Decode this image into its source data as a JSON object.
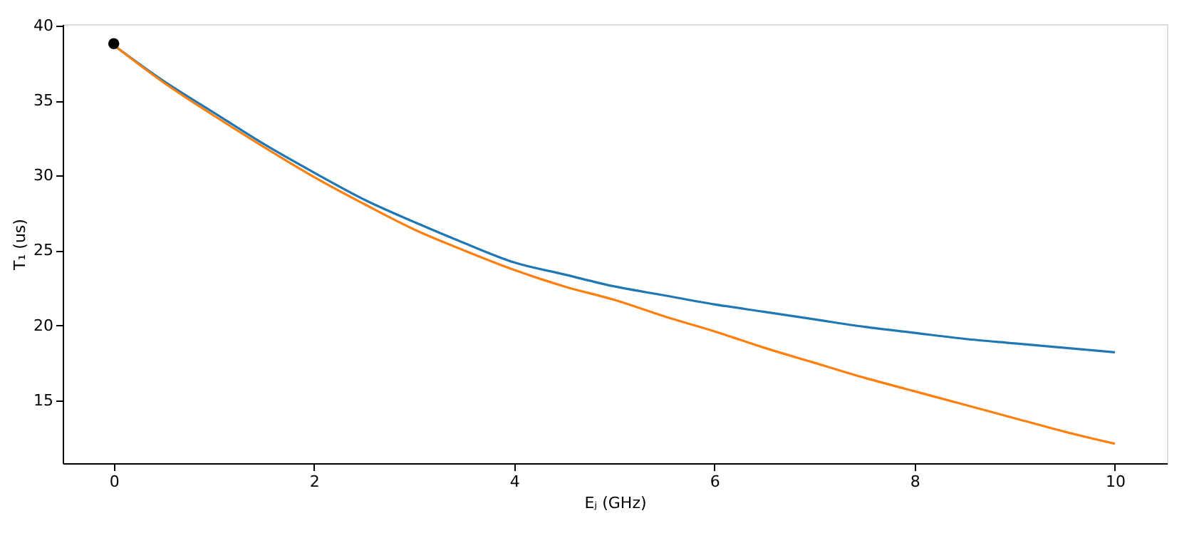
{
  "chart_data": {
    "type": "line",
    "xlabel": "Eⱼ (GHz)",
    "ylabel": "T₁ (us)",
    "xlim": [
      -0.51,
      10.52
    ],
    "ylim": [
      10.8,
      40.1
    ],
    "xticks": [
      0,
      2,
      4,
      6,
      8,
      10
    ],
    "yticks": [
      15,
      20,
      25,
      30,
      35,
      40
    ],
    "grid": false,
    "series": [
      {
        "color": "#1f77b4",
        "x": [
          0,
          0.5,
          1,
          1.5,
          2,
          2.5,
          3,
          3.5,
          4,
          4.5,
          5,
          5.5,
          6,
          6.5,
          7,
          7.5,
          8,
          8.5,
          9,
          9.5,
          10
        ],
        "values": [
          38.7,
          36.3,
          34.2,
          32.1,
          30.2,
          28.4,
          26.9,
          25.5,
          24.2,
          23.4,
          22.6,
          22.0,
          21.4,
          20.9,
          20.4,
          19.9,
          19.5,
          19.1,
          18.8,
          18.5,
          18.2
        ]
      },
      {
        "color": "#ff7f0e",
        "x": [
          0,
          0.5,
          1,
          1.5,
          2,
          2.5,
          3,
          3.5,
          4,
          4.5,
          5,
          5.5,
          6,
          6.5,
          7,
          7.5,
          8,
          8.5,
          9,
          9.5,
          10
        ],
        "values": [
          38.7,
          36.2,
          34.0,
          31.9,
          29.9,
          28.1,
          26.4,
          25.0,
          23.7,
          22.6,
          21.7,
          20.6,
          19.6,
          18.5,
          17.5,
          16.5,
          15.6,
          14.7,
          13.8,
          12.9,
          12.1
        ]
      },
      {
        "type": "scatter",
        "color": "#000000",
        "marker": "circle",
        "x": [
          0
        ],
        "values": [
          38.8
        ]
      }
    ]
  }
}
